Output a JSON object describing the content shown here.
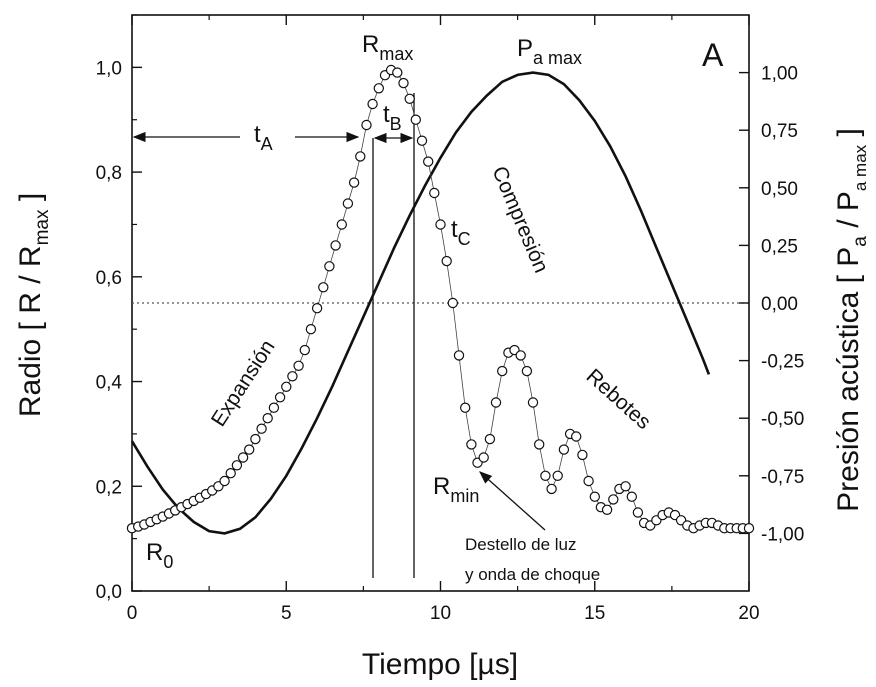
{
  "chart_data": {
    "type": "scatter",
    "panel_label": "A",
    "xlabel": "Tiempo [µs]",
    "ylabel_left": {
      "main": "Radio [ R / R",
      "sub": "max",
      "close": " ]"
    },
    "ylabel_right": {
      "main": "Presión acústica [ P",
      "sub1": "a",
      "mid": " / P",
      "sub2": "a max",
      "close": " ]"
    },
    "xlim": [
      0,
      20
    ],
    "ylim_left": [
      0.0,
      1.1
    ],
    "ylim_right": [
      -1.25,
      1.25
    ],
    "x_ticks": [
      0,
      5,
      10,
      15,
      20
    ],
    "x_tick_labels": [
      "0",
      "5",
      "10",
      "15",
      "20"
    ],
    "y_left_ticks": [
      0.0,
      0.2,
      0.4,
      0.6,
      0.8,
      1.0
    ],
    "y_left_tick_labels": [
      "0,0",
      "0,2",
      "0,4",
      "0,6",
      "0,8",
      "1,0"
    ],
    "y_right_ticks": [
      1.0,
      0.75,
      0.5,
      0.25,
      0.0,
      -0.25,
      -0.5,
      -0.75,
      -1.0
    ],
    "y_right_tick_labels": [
      "1,00",
      "0,75",
      "0,50",
      "0,25",
      "0,00",
      "-0,25",
      "-0,50",
      "-0,75",
      "-1,00"
    ],
    "zero_pressure_line": 0.0,
    "series": [
      {
        "kind": "markers",
        "axis": "left",
        "x": [
          0.0,
          0.2,
          0.4,
          0.6,
          0.8,
          1.0,
          1.2,
          1.4,
          1.6,
          1.8,
          2.0,
          2.2,
          2.4,
          2.6,
          2.8,
          3.0,
          3.2,
          3.4,
          3.6,
          3.8,
          4.0,
          4.2,
          4.4,
          4.6,
          4.8,
          5.0,
          5.2,
          5.4,
          5.6,
          5.8,
          6.0,
          6.2,
          6.4,
          6.6,
          6.8,
          7.0,
          7.2,
          7.4,
          7.6,
          7.8,
          8.0,
          8.2,
          8.4,
          8.6,
          8.8,
          9.0,
          9.2,
          9.4,
          9.6,
          9.8,
          10.0,
          10.2,
          10.4,
          10.6,
          10.8,
          11.0,
          11.2,
          11.4,
          11.6,
          11.8,
          12.0,
          12.2,
          12.4,
          12.6,
          12.8,
          13.0,
          13.2,
          13.4,
          13.6,
          13.8,
          14.0,
          14.2,
          14.4,
          14.6,
          14.8,
          15.0,
          15.2,
          15.4,
          15.6,
          15.8,
          16.0,
          16.2,
          16.4,
          16.6,
          16.8,
          17.0,
          17.2,
          17.4,
          17.6,
          17.8,
          18.0,
          18.2,
          18.4,
          18.6,
          18.8,
          19.0,
          19.2,
          19.4,
          19.6,
          19.8,
          20.0
        ],
        "y": [
          0.12,
          0.123,
          0.127,
          0.132,
          0.137,
          0.142,
          0.148,
          0.154,
          0.16,
          0.166,
          0.172,
          0.178,
          0.185,
          0.192,
          0.2,
          0.21,
          0.225,
          0.24,
          0.255,
          0.27,
          0.29,
          0.31,
          0.33,
          0.35,
          0.37,
          0.39,
          0.41,
          0.43,
          0.46,
          0.5,
          0.54,
          0.58,
          0.62,
          0.66,
          0.7,
          0.74,
          0.78,
          0.83,
          0.89,
          0.93,
          0.96,
          0.985,
          0.995,
          0.99,
          0.97,
          0.94,
          0.9,
          0.86,
          0.82,
          0.76,
          0.7,
          0.63,
          0.55,
          0.45,
          0.35,
          0.28,
          0.245,
          0.255,
          0.29,
          0.36,
          0.42,
          0.455,
          0.46,
          0.45,
          0.42,
          0.36,
          0.28,
          0.22,
          0.195,
          0.22,
          0.27,
          0.3,
          0.295,
          0.26,
          0.21,
          0.18,
          0.16,
          0.155,
          0.175,
          0.195,
          0.2,
          0.18,
          0.15,
          0.13,
          0.125,
          0.135,
          0.145,
          0.15,
          0.145,
          0.135,
          0.125,
          0.12,
          0.125,
          0.13,
          0.13,
          0.125,
          0.12,
          0.12,
          0.12,
          0.12,
          0.12
        ]
      },
      {
        "kind": "line",
        "axis": "right",
        "x": [
          0.0,
          0.5,
          1.0,
          1.5,
          2.0,
          2.5,
          3.0,
          3.5,
          4.0,
          4.5,
          5.0,
          5.5,
          6.0,
          6.5,
          7.0,
          7.5,
          8.0,
          8.5,
          9.0,
          9.5,
          10.0,
          10.5,
          11.0,
          11.5,
          12.0,
          12.5,
          13.0,
          13.5,
          14.0,
          14.5,
          15.0,
          15.5,
          16.0,
          16.5,
          17.0,
          17.5,
          18.0,
          18.5,
          18.7
        ],
        "y": [
          -0.6,
          -0.71,
          -0.81,
          -0.89,
          -0.95,
          -0.99,
          -1.0,
          -0.98,
          -0.93,
          -0.85,
          -0.75,
          -0.63,
          -0.5,
          -0.36,
          -0.21,
          -0.06,
          0.09,
          0.24,
          0.38,
          0.51,
          0.63,
          0.74,
          0.83,
          0.9,
          0.96,
          0.99,
          1.0,
          0.99,
          0.95,
          0.88,
          0.79,
          0.68,
          0.55,
          0.4,
          0.24,
          0.08,
          -0.08,
          -0.24,
          -0.31
        ]
      }
    ],
    "annotations": {
      "r0": {
        "main": "R",
        "sub": "0"
      },
      "rmax": {
        "main": "R",
        "sub": "max"
      },
      "pamax": {
        "main": "P",
        "sub": "a max"
      },
      "rmin": {
        "main": "R",
        "sub": "min"
      },
      "ta": {
        "main": "t",
        "sub": "A"
      },
      "tb": {
        "main": "t",
        "sub": "B"
      },
      "tc": {
        "main": "t",
        "sub": "C"
      },
      "expansion": "Expansión",
      "compression": "Compresión",
      "rebounds": "Rebotes",
      "flash_line1": "Destello de luz",
      "flash_line2": "y onda de choque"
    }
  }
}
